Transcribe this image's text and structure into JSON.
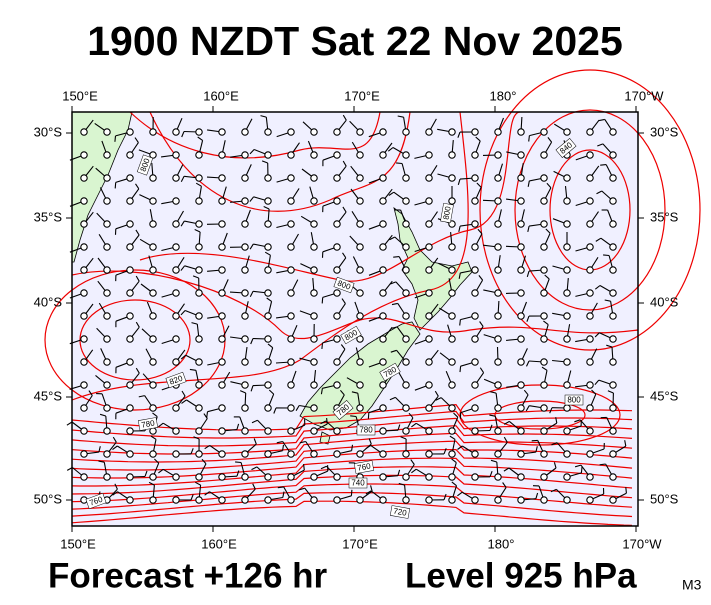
{
  "header": {
    "title": "1900 NZDT Sat 22 Nov 2025"
  },
  "map": {
    "lon_ticks": [
      "150°E",
      "160°E",
      "170°E",
      "180°",
      "170°W"
    ],
    "lat_ticks": [
      "30°S",
      "35°S",
      "40°S",
      "45°S",
      "50°S"
    ],
    "contour_labels": [
      "800",
      "840",
      "800",
      "800",
      "820",
      "800",
      "780",
      "800",
      "780",
      "780",
      "780",
      "760",
      "740",
      "720",
      "760"
    ]
  },
  "footer": {
    "forecast": "Forecast +126 hr",
    "level": "Level 925 hPa",
    "code": "M3"
  }
}
